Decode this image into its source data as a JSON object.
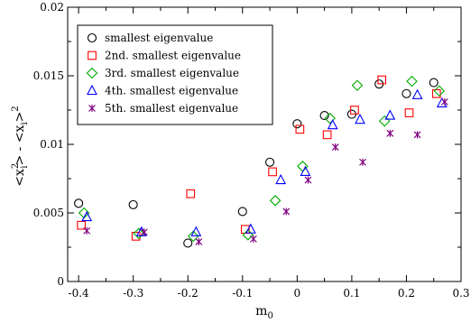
{
  "chart_data": {
    "type": "scatter",
    "xlabel": "m0",
    "ylabel": "<xi2> - <xi>2",
    "xlim": [
      -0.42,
      0.3
    ],
    "ylim": [
      0,
      0.02
    ],
    "xticks": [
      -0.4,
      -0.3,
      -0.2,
      -0.1,
      0,
      0.1,
      0.2,
      0.3
    ],
    "xtick_labels": [
      "-0.4",
      "-0.3",
      "-0.2",
      "-0.1",
      "0",
      "0.1",
      "0.2",
      "0.3"
    ],
    "yticks": [
      0,
      0.005,
      0.01,
      0.015,
      0.02
    ],
    "ytick_labels": [
      "0",
      "0.005",
      "0.01",
      "0.015",
      "0.02"
    ],
    "grid": false,
    "legend_position": "top-left",
    "series": [
      {
        "name": "smallest eigenvalue",
        "marker": "circle",
        "color": "#000000",
        "points": [
          [
            -0.4,
            0.0057
          ],
          [
            -0.3,
            0.0056
          ],
          [
            -0.2,
            0.0028
          ],
          [
            -0.1,
            0.0051
          ],
          [
            -0.05,
            0.0087
          ],
          [
            0.0,
            0.0115
          ],
          [
            0.05,
            0.0121
          ],
          [
            0.1,
            0.0122
          ],
          [
            0.15,
            0.0144
          ],
          [
            0.2,
            0.0137
          ],
          [
            0.25,
            0.0145
          ]
        ]
      },
      {
        "name": "2nd. smallest eigenvalue",
        "marker": "square",
        "color": "#ff0000",
        "points": [
          [
            -0.395,
            0.0041
          ],
          [
            -0.295,
            0.0033
          ],
          [
            -0.195,
            0.0064
          ],
          [
            -0.095,
            0.0038
          ],
          [
            -0.045,
            0.008
          ],
          [
            0.005,
            0.0111
          ],
          [
            0.055,
            0.0107
          ],
          [
            0.105,
            0.0125
          ],
          [
            0.155,
            0.0147
          ],
          [
            0.205,
            0.0123
          ],
          [
            0.255,
            0.0137
          ]
        ]
      },
      {
        "name": "3rd. smallest eigenvalue",
        "marker": "diamond",
        "color": "#00aa00",
        "points": [
          [
            -0.39,
            0.005
          ],
          [
            -0.29,
            0.0035
          ],
          [
            -0.19,
            0.0033
          ],
          [
            -0.09,
            0.0034
          ],
          [
            -0.04,
            0.0059
          ],
          [
            0.01,
            0.0084
          ],
          [
            0.06,
            0.0119
          ],
          [
            0.11,
            0.0143
          ],
          [
            0.16,
            0.0117
          ],
          [
            0.21,
            0.0146
          ],
          [
            0.26,
            0.0139
          ]
        ]
      },
      {
        "name": "4th. smallest eigenvalue",
        "marker": "triangle",
        "color": "#0000ff",
        "points": [
          [
            -0.385,
            0.0047
          ],
          [
            -0.285,
            0.0036
          ],
          [
            -0.185,
            0.0036
          ],
          [
            -0.085,
            0.0038
          ],
          [
            -0.03,
            0.0074
          ],
          [
            0.015,
            0.008
          ],
          [
            0.065,
            0.0114
          ],
          [
            0.115,
            0.0118
          ],
          [
            0.17,
            0.0121
          ],
          [
            0.22,
            0.0136
          ],
          [
            0.265,
            0.013
          ]
        ]
      },
      {
        "name": "5th. smallest eigenvalue",
        "marker": "x",
        "color": "#800080",
        "points": [
          [
            -0.385,
            0.0037
          ],
          [
            -0.28,
            0.0036
          ],
          [
            -0.18,
            0.0029
          ],
          [
            -0.08,
            0.0031
          ],
          [
            -0.02,
            0.0051
          ],
          [
            0.02,
            0.0074
          ],
          [
            0.07,
            0.0098
          ],
          [
            0.12,
            0.0087
          ],
          [
            0.17,
            0.0108
          ],
          [
            0.22,
            0.0107
          ],
          [
            0.27,
            0.0131
          ]
        ]
      }
    ]
  }
}
